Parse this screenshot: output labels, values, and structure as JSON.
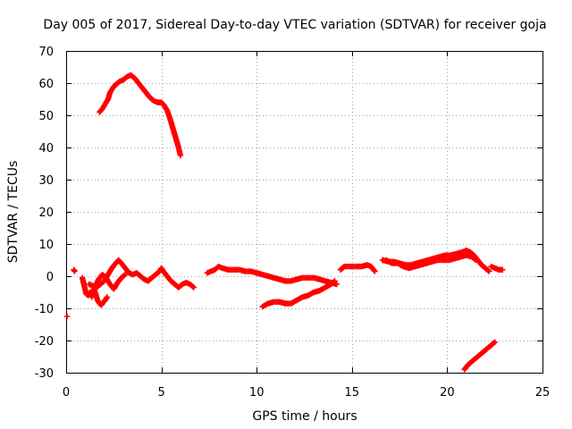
{
  "chart_data": {
    "type": "scatter",
    "title": "Day 005 of 2017, Sidereal Day-to-day VTEC variation (SDTVAR) for receiver goja",
    "xlabel": "GPS time / hours",
    "ylabel": "SDTVAR / TECUs",
    "xlim": [
      0,
      25
    ],
    "ylim": [
      -30,
      70
    ],
    "xticks": [
      0,
      5,
      10,
      15,
      20,
      25
    ],
    "yticks": [
      -30,
      -20,
      -10,
      0,
      10,
      20,
      30,
      40,
      50,
      60,
      70
    ],
    "grid": true,
    "marker": "plus",
    "series": [
      {
        "name": "SDTVAR",
        "color": "#ff0000",
        "segments": [
          [
            [
              0.05,
              -12.5
            ]
          ],
          [
            [
              0.4,
              2.0
            ],
            [
              0.45,
              1.5
            ]
          ],
          [
            [
              0.85,
              -0.5
            ],
            [
              0.95,
              -3.0
            ],
            [
              1.05,
              -5.5
            ],
            [
              1.15,
              -6.0
            ],
            [
              1.25,
              -5.0
            ],
            [
              1.35,
              -6.5
            ],
            [
              1.45,
              -4.0
            ],
            [
              1.55,
              -5.5
            ],
            [
              1.65,
              -7.5
            ],
            [
              1.75,
              -8.5
            ],
            [
              1.85,
              -9.0
            ],
            [
              1.95,
              -8.0
            ],
            [
              2.05,
              -7.5
            ],
            [
              2.15,
              -6.5
            ]
          ],
          [
            [
              1.2,
              -2.5
            ],
            [
              1.4,
              -3.0
            ],
            [
              1.6,
              -3.5
            ],
            [
              1.8,
              -2.5
            ],
            [
              2.0,
              -1.5
            ],
            [
              2.2,
              0.5
            ],
            [
              2.4,
              2.5
            ],
            [
              2.6,
              4.0
            ],
            [
              2.75,
              5.0
            ],
            [
              2.9,
              4.0
            ],
            [
              3.1,
              2.5
            ],
            [
              3.3,
              1.0
            ],
            [
              3.5,
              0.5
            ],
            [
              3.7,
              1.0
            ],
            [
              3.9,
              0.0
            ],
            [
              4.1,
              -1.0
            ],
            [
              4.3,
              -1.5
            ],
            [
              4.5,
              -0.5
            ],
            [
              4.7,
              0.5
            ],
            [
              4.9,
              1.5
            ],
            [
              5.0,
              2.5
            ],
            [
              5.1,
              1.5
            ],
            [
              5.3,
              0.0
            ],
            [
              5.5,
              -1.5
            ],
            [
              5.7,
              -2.5
            ],
            [
              5.9,
              -3.5
            ],
            [
              6.1,
              -2.5
            ],
            [
              6.3,
              -2.0
            ],
            [
              6.5,
              -2.5
            ],
            [
              6.7,
              -3.5
            ]
          ],
          [
            [
              1.5,
              -3.5
            ],
            [
              1.7,
              -1.0
            ],
            [
              1.9,
              0.5
            ],
            [
              2.1,
              -0.5
            ],
            [
              2.3,
              -2.5
            ],
            [
              2.5,
              -4.0
            ],
            [
              2.7,
              -2.0
            ],
            [
              2.9,
              -0.5
            ],
            [
              3.1,
              0.5
            ]
          ],
          [
            [
              1.75,
              51.0
            ],
            [
              1.9,
              52.0
            ],
            [
              2.05,
              53.5
            ],
            [
              2.2,
              55.0
            ],
            [
              2.3,
              57.0
            ],
            [
              2.45,
              58.5
            ],
            [
              2.6,
              59.5
            ],
            [
              2.8,
              60.5
            ],
            [
              3.0,
              61.0
            ],
            [
              3.2,
              62.0
            ],
            [
              3.4,
              62.5
            ],
            [
              3.6,
              61.5
            ],
            [
              3.8,
              60.0
            ],
            [
              4.0,
              58.5
            ],
            [
              4.2,
              57.0
            ],
            [
              4.4,
              55.5
            ],
            [
              4.6,
              54.5
            ],
            [
              4.8,
              54.0
            ],
            [
              5.0,
              54.0
            ],
            [
              5.15,
              53.0
            ],
            [
              5.3,
              51.5
            ],
            [
              5.45,
              49.0
            ],
            [
              5.6,
              46.0
            ],
            [
              5.75,
              43.0
            ],
            [
              5.9,
              40.0
            ],
            [
              6.0,
              37.5
            ]
          ],
          [
            [
              7.4,
              1.0
            ],
            [
              7.6,
              1.5
            ],
            [
              7.8,
              2.0
            ],
            [
              8.0,
              3.0
            ],
            [
              8.2,
              2.5
            ],
            [
              8.5,
              2.0
            ],
            [
              8.8,
              2.0
            ],
            [
              9.1,
              2.0
            ],
            [
              9.4,
              1.5
            ],
            [
              9.7,
              1.5
            ],
            [
              10.0,
              1.0
            ],
            [
              10.3,
              0.5
            ],
            [
              10.6,
              0.0
            ],
            [
              10.9,
              -0.5
            ],
            [
              11.2,
              -1.0
            ],
            [
              11.5,
              -1.5
            ],
            [
              11.8,
              -1.5
            ],
            [
              12.1,
              -1.0
            ],
            [
              12.4,
              -0.5
            ],
            [
              12.7,
              -0.5
            ],
            [
              13.0,
              -0.5
            ],
            [
              13.3,
              -1.0
            ],
            [
              13.6,
              -1.5
            ],
            [
              13.9,
              -2.0
            ],
            [
              14.2,
              -2.5
            ]
          ],
          [
            [
              10.3,
              -9.5
            ],
            [
              10.6,
              -8.5
            ],
            [
              10.9,
              -8.0
            ],
            [
              11.2,
              -8.0
            ],
            [
              11.5,
              -8.5
            ],
            [
              11.8,
              -8.5
            ],
            [
              12.1,
              -7.5
            ],
            [
              12.4,
              -6.5
            ],
            [
              12.7,
              -6.0
            ],
            [
              13.0,
              -5.0
            ],
            [
              13.3,
              -4.5
            ],
            [
              13.6,
              -3.5
            ],
            [
              13.9,
              -2.5
            ],
            [
              14.1,
              -1.5
            ]
          ],
          [
            [
              14.4,
              2.0
            ],
            [
              14.6,
              3.0
            ],
            [
              14.9,
              3.0
            ],
            [
              15.2,
              3.0
            ],
            [
              15.5,
              3.0
            ],
            [
              15.8,
              3.5
            ],
            [
              16.0,
              3.0
            ],
            [
              16.2,
              1.5
            ]
          ],
          [
            [
              16.6,
              5.0
            ],
            [
              16.9,
              4.5
            ],
            [
              17.2,
              4.5
            ],
            [
              17.5,
              4.0
            ],
            [
              17.8,
              3.5
            ],
            [
              18.1,
              3.5
            ],
            [
              18.4,
              4.0
            ],
            [
              18.7,
              4.5
            ],
            [
              19.0,
              5.0
            ],
            [
              19.3,
              5.5
            ],
            [
              19.6,
              6.0
            ],
            [
              19.9,
              6.5
            ],
            [
              20.2,
              6.5
            ],
            [
              20.5,
              7.0
            ],
            [
              20.8,
              7.5
            ],
            [
              21.0,
              8.0
            ],
            [
              21.2,
              7.5
            ],
            [
              21.4,
              6.5
            ],
            [
              21.6,
              5.0
            ],
            [
              21.8,
              3.5
            ],
            [
              22.0,
              2.5
            ],
            [
              22.2,
              1.5
            ]
          ],
          [
            [
              16.8,
              5.0
            ],
            [
              17.1,
              4.0
            ],
            [
              17.4,
              4.0
            ],
            [
              17.7,
              3.0
            ],
            [
              18.0,
              2.5
            ],
            [
              18.3,
              3.0
            ],
            [
              18.6,
              3.5
            ],
            [
              18.9,
              4.0
            ],
            [
              19.2,
              4.5
            ],
            [
              19.5,
              5.0
            ],
            [
              19.8,
              5.0
            ],
            [
              20.1,
              5.0
            ],
            [
              20.4,
              5.5
            ],
            [
              20.7,
              6.0
            ],
            [
              21.0,
              6.5
            ],
            [
              21.3,
              6.0
            ],
            [
              21.5,
              5.0
            ]
          ],
          [
            [
              22.3,
              3.0
            ],
            [
              22.5,
              2.5
            ],
            [
              22.7,
              2.0
            ],
            [
              22.9,
              2.0
            ]
          ],
          [
            [
              20.9,
              -29.0
            ],
            [
              21.1,
              -27.5
            ],
            [
              21.3,
              -26.5
            ],
            [
              21.5,
              -25.5
            ],
            [
              21.7,
              -24.5
            ],
            [
              21.9,
              -23.5
            ],
            [
              22.1,
              -22.5
            ],
            [
              22.3,
              -21.5
            ],
            [
              22.5,
              -20.5
            ]
          ]
        ]
      }
    ]
  }
}
